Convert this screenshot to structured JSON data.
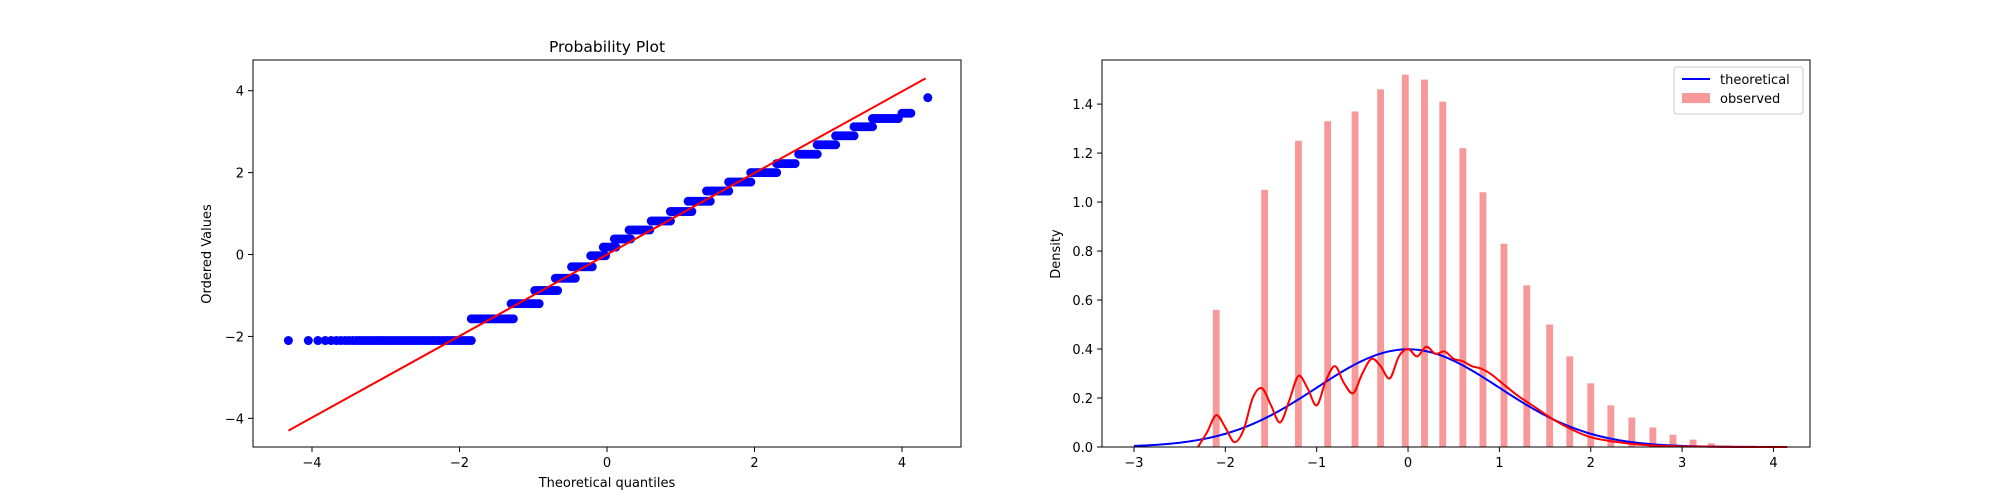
{
  "chart_data": [
    {
      "type": "scatter",
      "title": "Probability Plot",
      "xlabel": "Theoretical quantiles",
      "ylabel": "Ordered Values",
      "xlim": [
        -4.8,
        4.8
      ],
      "ylim": [
        -4.7,
        4.75
      ],
      "xticks": [
        -4,
        -2,
        0,
        2,
        4
      ],
      "yticks": [
        -4,
        -2,
        0,
        2,
        4
      ],
      "grid": false,
      "point_color": "#0000ff",
      "fit_line": {
        "color": "#ff0000",
        "x": [
          -4.32,
          4.32
        ],
        "y": [
          -4.3,
          4.3
        ]
      },
      "floor_value": -2.1,
      "floor_points_x": [
        -4.32,
        -4.05,
        -3.92,
        -3.82,
        -3.74,
        -3.67,
        -3.61,
        -3.55,
        -3.5,
        -3.45,
        -3.4,
        -3.36,
        -3.32,
        -3.28,
        -3.24,
        -3.2,
        -3.16,
        -3.12,
        -3.08,
        -3.04,
        -3.0,
        -2.96,
        -2.92,
        -2.88,
        -2.84,
        -2.8,
        -2.76,
        -2.72,
        -2.68,
        -2.64,
        -2.6,
        -2.56,
        -2.52,
        -2.48,
        -2.44,
        -2.4,
        -2.36,
        -2.32,
        -2.28,
        -2.24,
        -2.2,
        -2.16,
        -2.12,
        -2.08,
        -2.04,
        -2.0,
        -1.96,
        -1.92,
        -1.88,
        -1.84
      ],
      "steps": [
        {
          "y": -1.57,
          "x0": -1.84,
          "x1": -1.27
        },
        {
          "y": -1.2,
          "x0": -1.3,
          "x1": -0.92
        },
        {
          "y": -0.88,
          "x0": -0.98,
          "x1": -0.67
        },
        {
          "y": -0.58,
          "x0": -0.7,
          "x1": -0.43
        },
        {
          "y": -0.3,
          "x0": -0.48,
          "x1": -0.2
        },
        {
          "y": -0.03,
          "x0": -0.22,
          "x1": -0.02
        },
        {
          "y": 0.18,
          "x0": -0.05,
          "x1": 0.12
        },
        {
          "y": 0.38,
          "x0": 0.1,
          "x1": 0.32
        },
        {
          "y": 0.6,
          "x0": 0.3,
          "x1": 0.58
        },
        {
          "y": 0.82,
          "x0": 0.6,
          "x1": 0.86
        },
        {
          "y": 1.05,
          "x0": 0.86,
          "x1": 1.15
        },
        {
          "y": 1.3,
          "x0": 1.1,
          "x1": 1.4
        },
        {
          "y": 1.55,
          "x0": 1.35,
          "x1": 1.65
        },
        {
          "y": 1.77,
          "x0": 1.65,
          "x1": 1.95
        },
        {
          "y": 2.0,
          "x0": 1.95,
          "x1": 2.3
        },
        {
          "y": 2.22,
          "x0": 2.3,
          "x1": 2.55
        },
        {
          "y": 2.45,
          "x0": 2.6,
          "x1": 2.85
        },
        {
          "y": 2.68,
          "x0": 2.85,
          "x1": 3.1
        },
        {
          "y": 2.9,
          "x0": 3.1,
          "x1": 3.35
        },
        {
          "y": 3.12,
          "x0": 3.35,
          "x1": 3.6
        },
        {
          "y": 3.32,
          "x0": 3.6,
          "x1": 3.95
        },
        {
          "y": 3.45,
          "x0": 4.0,
          "x1": 4.12
        }
      ],
      "outlier_points": [
        {
          "x": 4.35,
          "y": 3.83
        }
      ]
    },
    {
      "type": "bar",
      "title": "",
      "xlabel": "",
      "ylabel": "Density",
      "xlim": [
        -3.35,
        4.4
      ],
      "ylim": [
        0,
        1.58
      ],
      "xticks": [
        -3,
        -2,
        -1,
        0,
        1,
        2,
        3,
        4
      ],
      "yticks": [
        0.0,
        0.2,
        0.4,
        0.6,
        0.8,
        1.0,
        1.2,
        1.4
      ],
      "ytick_labels": [
        "0.0",
        "0.2",
        "0.4",
        "0.6",
        "0.8",
        "1.0",
        "1.2",
        "1.4"
      ],
      "grid": false,
      "bar_width": 0.075,
      "bar_color": "#f89999",
      "bars": [
        {
          "x": -2.1,
          "height": 0.56
        },
        {
          "x": -1.57,
          "height": 1.05
        },
        {
          "x": -1.2,
          "height": 1.25
        },
        {
          "x": -0.88,
          "height": 1.33
        },
        {
          "x": -0.58,
          "height": 1.37
        },
        {
          "x": -0.3,
          "height": 1.46
        },
        {
          "x": -0.03,
          "height": 1.52
        },
        {
          "x": 0.18,
          "height": 1.5
        },
        {
          "x": 0.38,
          "height": 1.41
        },
        {
          "x": 0.6,
          "height": 1.22
        },
        {
          "x": 0.82,
          "height": 1.04
        },
        {
          "x": 1.05,
          "height": 0.83
        },
        {
          "x": 1.3,
          "height": 0.66
        },
        {
          "x": 1.55,
          "height": 0.5
        },
        {
          "x": 1.77,
          "height": 0.37
        },
        {
          "x": 2.0,
          "height": 0.26
        },
        {
          "x": 2.22,
          "height": 0.17
        },
        {
          "x": 2.45,
          "height": 0.12
        },
        {
          "x": 2.68,
          "height": 0.08
        },
        {
          "x": 2.9,
          "height": 0.05
        },
        {
          "x": 3.12,
          "height": 0.03
        },
        {
          "x": 3.32,
          "height": 0.015
        }
      ],
      "theoretical_curve": {
        "label": "theoretical",
        "color": "#0000ff",
        "distribution": "standard normal",
        "x_range": [
          -3.0,
          4.15
        ]
      },
      "kde_curve": {
        "color": "#ff0000",
        "x": [
          -2.3,
          -2.2,
          -2.1,
          -2.0,
          -1.9,
          -1.8,
          -1.7,
          -1.6,
          -1.5,
          -1.4,
          -1.3,
          -1.2,
          -1.1,
          -1.0,
          -0.9,
          -0.8,
          -0.7,
          -0.6,
          -0.5,
          -0.4,
          -0.3,
          -0.2,
          -0.1,
          0.0,
          0.1,
          0.2,
          0.3,
          0.4,
          0.5,
          0.6,
          0.7,
          0.8,
          0.9,
          1.0,
          1.2,
          1.4,
          1.6,
          1.8,
          2.0,
          2.2,
          2.4,
          2.6,
          2.8,
          3.0,
          3.4,
          3.8,
          4.15
        ],
        "y": [
          0.0,
          0.06,
          0.13,
          0.08,
          0.02,
          0.07,
          0.2,
          0.24,
          0.17,
          0.1,
          0.19,
          0.29,
          0.24,
          0.17,
          0.27,
          0.33,
          0.26,
          0.22,
          0.3,
          0.36,
          0.33,
          0.28,
          0.37,
          0.4,
          0.37,
          0.41,
          0.38,
          0.39,
          0.36,
          0.35,
          0.33,
          0.32,
          0.3,
          0.27,
          0.21,
          0.16,
          0.11,
          0.07,
          0.04,
          0.025,
          0.015,
          0.008,
          0.004,
          0.002,
          0.001,
          0.0,
          0.0
        ]
      },
      "legend": {
        "placement": "top-right",
        "entries": [
          {
            "label": "theoretical",
            "marker": "line",
            "color": "#0000ff"
          },
          {
            "label": "observed",
            "marker": "patch",
            "color": "#f89999"
          }
        ]
      }
    }
  ]
}
